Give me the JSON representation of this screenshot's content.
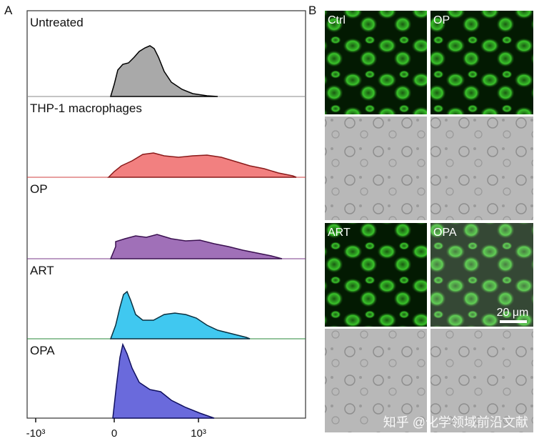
{
  "panels": [
    {
      "label": "A",
      "histograms": [
        "Untreated",
        "THP-1 macrophages",
        "OP",
        "ART",
        "OPA"
      ],
      "x_axis": {
        "tick_labels": [
          "-10³",
          "0",
          "10³"
        ]
      }
    },
    {
      "label": "B",
      "images": [
        "Ctrl",
        "OP",
        "ART",
        "OPA"
      ],
      "scale_bar": "20 μm"
    }
  ],
  "watermark": "知乎 @化学领域前沿文献"
}
